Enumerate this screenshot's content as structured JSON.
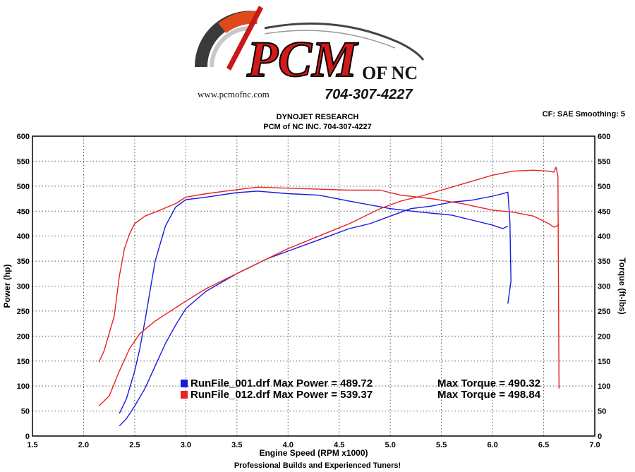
{
  "logo": {
    "brand": "PCM",
    "suffix": "OF NC",
    "website": "www.pcmofnc.com",
    "phone": "704-307-4227"
  },
  "header": {
    "line1": "DYNOJET RESEARCH",
    "line2": "PCM of NC INC. 704-307-4227",
    "cf": "CF: SAE  Smoothing: 5"
  },
  "footer": "Professional Builds and Experienced Tuners!",
  "colors": {
    "run1": "#1a1adf",
    "run2": "#e82323",
    "grid": "#555555"
  },
  "chart_data": {
    "type": "line",
    "xlabel": "Engine Speed (RPM x1000)",
    "ylabel_left": "Power (hp)",
    "ylabel_right": "Torque (ft-lbs)",
    "xlim": [
      1.5,
      7.0
    ],
    "ylim": [
      0,
      600
    ],
    "xticks": [
      "1.5",
      "2.0",
      "2.5",
      "3.0",
      "3.5",
      "4.0",
      "4.5",
      "5.0",
      "5.5",
      "6.0",
      "6.5",
      "7.0"
    ],
    "yticks": [
      "0",
      "50",
      "100",
      "150",
      "200",
      "250",
      "300",
      "350",
      "400",
      "450",
      "500",
      "550",
      "600"
    ],
    "grid": true,
    "legend": [
      {
        "file": "RunFile_001.drf",
        "max_power_label": "Max Power = 489.72",
        "max_torque_label": "Max Torque = 490.32",
        "color": "#1a1adf"
      },
      {
        "file": "RunFile_012.drf",
        "max_power_label": "Max Power = 539.37",
        "max_torque_label": "Max Torque = 498.84",
        "color": "#e82323"
      }
    ],
    "series": [
      {
        "run": "RunFile_001.drf",
        "measure": "Power",
        "color": "#1a1adf",
        "x": [
          2.35,
          2.42,
          2.5,
          2.6,
          2.7,
          2.8,
          2.9,
          3.0,
          3.2,
          3.5,
          3.8,
          4.0,
          4.2,
          4.4,
          4.6,
          4.8,
          5.0,
          5.2,
          5.4,
          5.6,
          5.8,
          6.0,
          6.1,
          6.15,
          6.17,
          6.18,
          6.15
        ],
        "y": [
          20,
          35,
          60,
          95,
          140,
          185,
          222,
          255,
          290,
          325,
          355,
          370,
          385,
          400,
          415,
          425,
          440,
          455,
          460,
          468,
          472,
          480,
          485,
          488,
          430,
          310,
          265
        ]
      },
      {
        "run": "RunFile_001.drf",
        "measure": "Torque",
        "color": "#1a1adf",
        "x": [
          2.35,
          2.42,
          2.5,
          2.55,
          2.6,
          2.65,
          2.7,
          2.8,
          2.9,
          3.0,
          3.2,
          3.5,
          3.7,
          4.0,
          4.3,
          4.6,
          5.0,
          5.3,
          5.6,
          5.8,
          6.0,
          6.1,
          6.15
        ],
        "y": [
          45,
          75,
          130,
          175,
          230,
          290,
          350,
          420,
          458,
          473,
          478,
          487,
          490,
          485,
          482,
          470,
          455,
          448,
          442,
          432,
          422,
          415,
          420
        ]
      },
      {
        "run": "RunFile_012.drf",
        "measure": "Power",
        "color": "#e82323",
        "x": [
          2.15,
          2.25,
          2.35,
          2.45,
          2.55,
          2.7,
          2.85,
          3.0,
          3.2,
          3.5,
          3.8,
          4.0,
          4.3,
          4.6,
          4.9,
          5.1,
          5.3,
          5.5,
          5.8,
          6.0,
          6.2,
          6.4,
          6.55,
          6.6,
          6.62,
          6.64,
          6.65
        ],
        "y": [
          60,
          80,
          130,
          175,
          205,
          230,
          250,
          270,
          295,
          325,
          355,
          375,
          400,
          425,
          455,
          470,
          480,
          492,
          510,
          522,
          530,
          532,
          530,
          528,
          538,
          520,
          95
        ]
      },
      {
        "run": "RunFile_012.drf",
        "measure": "Torque",
        "color": "#e82323",
        "x": [
          2.15,
          2.2,
          2.3,
          2.35,
          2.4,
          2.45,
          2.5,
          2.6,
          2.7,
          2.9,
          3.0,
          3.2,
          3.5,
          3.7,
          4.0,
          4.3,
          4.6,
          4.9,
          5.1,
          5.4,
          5.7,
          6.0,
          6.2,
          6.4,
          6.55,
          6.6,
          6.63,
          6.65
        ],
        "y": [
          148,
          170,
          240,
          320,
          375,
          405,
          425,
          440,
          448,
          465,
          478,
          485,
          493,
          498,
          496,
          494,
          492,
          492,
          482,
          475,
          465,
          452,
          448,
          440,
          425,
          418,
          420,
          425
        ]
      }
    ]
  }
}
